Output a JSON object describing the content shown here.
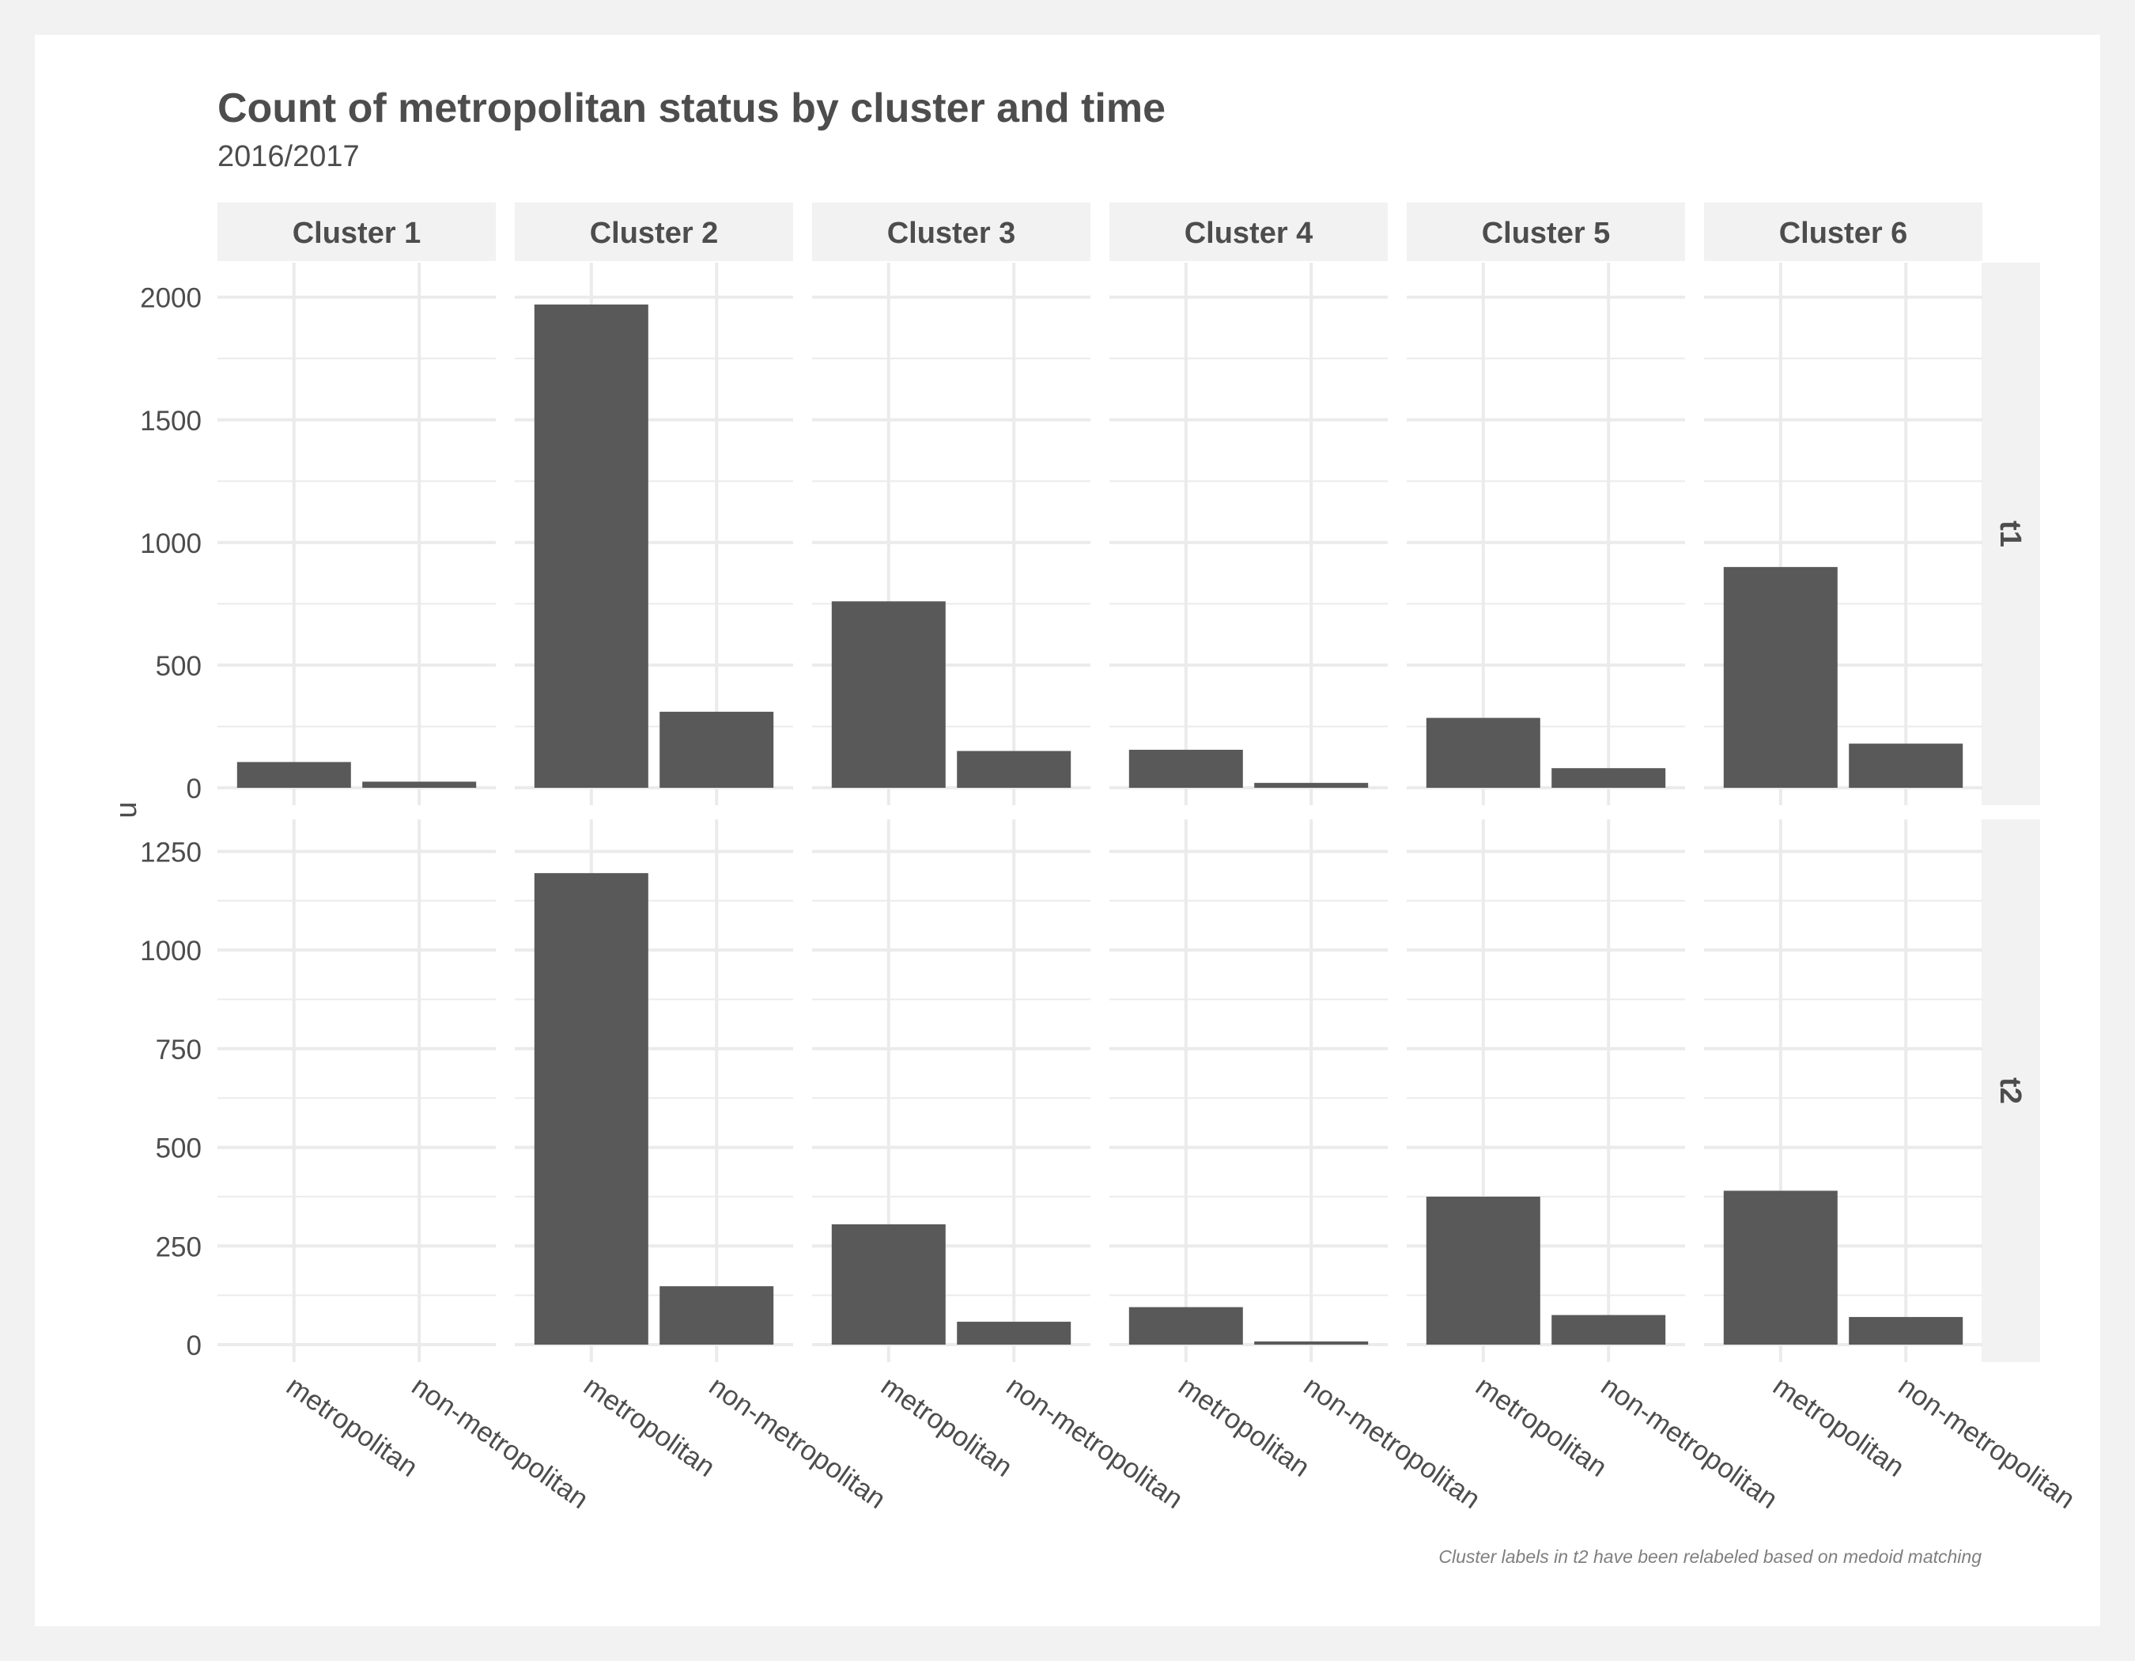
{
  "chart_data": {
    "type": "bar",
    "title": "Count of metropolitan status by cluster and time",
    "subtitle": "2016/2017",
    "ylabel": "n",
    "caption": "Cluster labels in t2 have been relabeled based on medoid matching",
    "categories": [
      "metropolitan",
      "non-metropolitan"
    ],
    "facet_columns": [
      "Cluster 1",
      "Cluster 2",
      "Cluster 3",
      "Cluster 4",
      "Cluster 5",
      "Cluster 6"
    ],
    "facet_rows": [
      {
        "label": "t1",
        "ylim": [
          0,
          2070
        ],
        "yticks": [
          0,
          500,
          1000,
          1500,
          2000
        ],
        "values": [
          [
            105,
            25
          ],
          [
            1970,
            310
          ],
          [
            760,
            150
          ],
          [
            155,
            20
          ],
          [
            285,
            80
          ],
          [
            900,
            180
          ]
        ]
      },
      {
        "label": "t2",
        "ylim": [
          0,
          1287
        ],
        "yticks": [
          0,
          250,
          500,
          750,
          1000,
          1250
        ],
        "values": [
          [
            0,
            0
          ],
          [
            1195,
            148
          ],
          [
            305,
            58
          ],
          [
            95,
            8
          ],
          [
            375,
            75
          ],
          [
            390,
            70
          ]
        ]
      }
    ],
    "colors": {
      "bar": "#595959",
      "panel_background": "#ffffff",
      "grid": "#ebebeb",
      "strip_background": "#f2f2f2",
      "text": "#4d4d4d"
    },
    "grid": true,
    "legend": "none"
  }
}
